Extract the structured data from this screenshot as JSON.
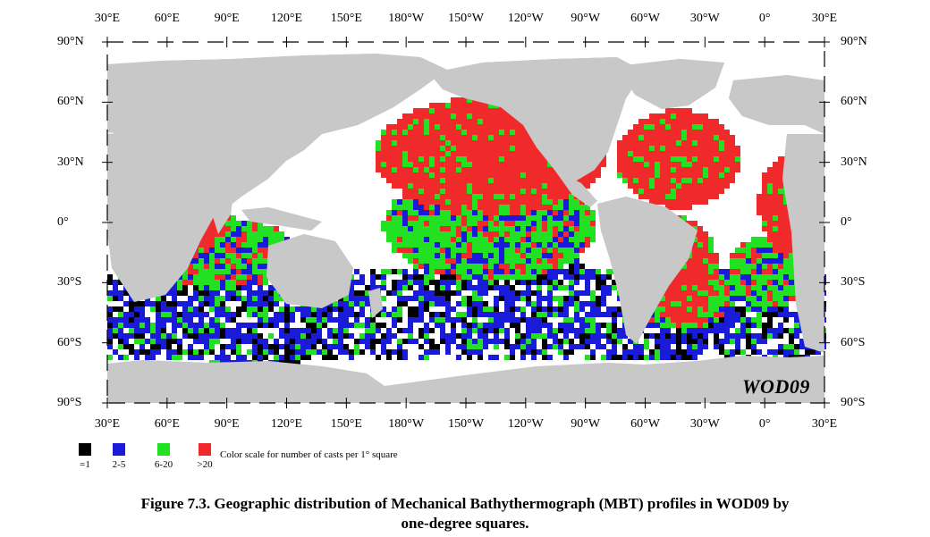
{
  "map": {
    "top_lon_labels": [
      "30°E",
      "60°E",
      "90°E",
      "120°E",
      "150°E",
      "180°W",
      "150°W",
      "120°W",
      "90°W",
      "60°W",
      "30°W",
      "0°",
      "30°E"
    ],
    "bottom_lon_labels": [
      "30°E",
      "60°E",
      "90°E",
      "120°E",
      "150°E",
      "180°W",
      "150°W",
      "120°W",
      "90°W",
      "60°W",
      "30°W",
      "0°",
      "30°E"
    ],
    "lat_labels": [
      "90°N",
      "60°N",
      "30°N",
      "0°",
      "30°S",
      "60°S",
      "90°S"
    ],
    "stamp": "WOD09",
    "colors": {
      "land": "#c8c8c8",
      "ocean_bg": "#ffffff",
      "cat_1": "#000000",
      "cat_2_5": "#1a1ad9",
      "cat_6_20": "#22e022",
      "cat_gt20": "#f02a2a"
    }
  },
  "legend": {
    "items": [
      {
        "label": "=1",
        "color": "#000000"
      },
      {
        "label": "2-5",
        "color": "#1a1ad9"
      },
      {
        "label": "6-20",
        "color": "#22e022"
      },
      {
        "label": ">20",
        "color": "#f02a2a"
      }
    ],
    "text": "Color scale for number of casts per 1° square"
  },
  "caption": {
    "line1": "Figure 7.3. Geographic distribution of Mechanical Bathythermograph (MBT) profiles in WOD09 by",
    "line2": "one-degree squares."
  }
}
